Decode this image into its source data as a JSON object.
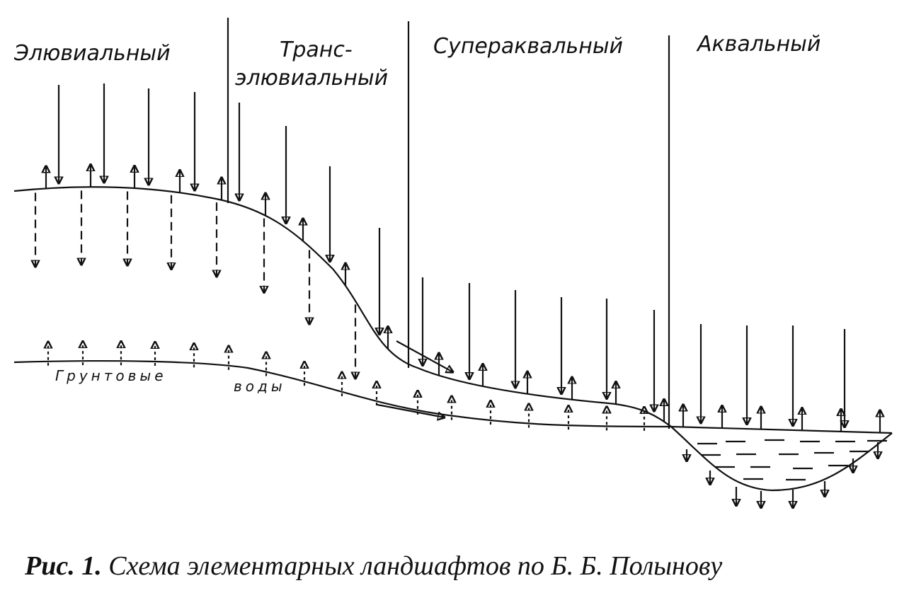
{
  "zones": [
    {
      "lines": [
        "Элювиальный"
      ]
    },
    {
      "lines": [
        "Транс-",
        "элювиальный"
      ]
    },
    {
      "lines": [
        "Супераквальный"
      ]
    },
    {
      "lines": [
        "Аквальный"
      ]
    }
  ],
  "groundwater": [
    "Грунтовые",
    "воды"
  ],
  "caption": {
    "number": "Рис. 1.",
    "text": "Схема элементарных ландшафтов по Б. Б. Полынову"
  }
}
